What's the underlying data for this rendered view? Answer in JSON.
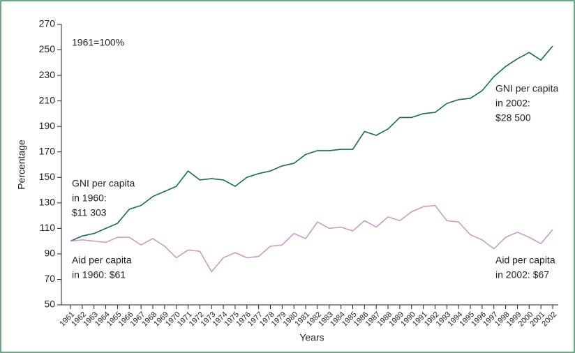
{
  "chart_data": {
    "type": "line",
    "x_label": "Years",
    "y_label": "Percentage",
    "x": [
      1961,
      1962,
      1963,
      1964,
      1965,
      1966,
      1967,
      1968,
      1969,
      1970,
      1971,
      1972,
      1973,
      1974,
      1975,
      1976,
      1977,
      1978,
      1979,
      1980,
      1981,
      1982,
      1983,
      1984,
      1985,
      1986,
      1987,
      1988,
      1989,
      1990,
      1991,
      1992,
      1993,
      1994,
      1995,
      1996,
      1997,
      1998,
      1999,
      2000,
      2001,
      2002
    ],
    "xlim": [
      1961,
      2002
    ],
    "ylim": [
      50,
      270
    ],
    "yticks": [
      50,
      70,
      90,
      110,
      130,
      150,
      170,
      190,
      210,
      230,
      250,
      270
    ],
    "series": [
      {
        "name": "GNI per capita",
        "color": "#1b6b4c",
        "values": [
          100,
          104,
          106,
          110,
          114,
          125,
          128,
          135,
          139,
          143,
          155,
          148,
          149,
          148,
          143,
          150,
          153,
          155,
          159,
          161,
          168,
          171,
          171,
          172,
          172,
          186,
          183,
          188,
          197,
          197,
          200,
          201,
          208,
          211,
          212,
          218,
          229,
          237,
          243,
          248,
          242,
          253
        ]
      },
      {
        "name": "Aid per capita",
        "color": "#c99bc9",
        "values": [
          100,
          101,
          100,
          99,
          103,
          103,
          97,
          102,
          96,
          87,
          93,
          92,
          76,
          87,
          91,
          87,
          88,
          96,
          97,
          106,
          102,
          115,
          110,
          111,
          108,
          116,
          111,
          119,
          116,
          123,
          127,
          128,
          116,
          115,
          105,
          101,
          94,
          103,
          107,
          103,
          98,
          109
        ]
      }
    ],
    "annotations": [
      {
        "lines": [
          "1961=100%"
        ]
      },
      {
        "lines": [
          "GNI per capita",
          "in 1960:",
          "$11 303"
        ]
      },
      {
        "lines": [
          "Aid per capita",
          "in 1960: $61"
        ]
      },
      {
        "lines": [
          "GNI per capita",
          "in 2002:",
          "$28 500"
        ]
      },
      {
        "lines": [
          "Aid per capita",
          "in 2002: $67"
        ]
      }
    ]
  }
}
